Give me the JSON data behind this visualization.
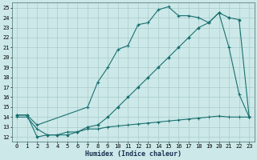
{
  "xlabel": "Humidex (Indice chaleur)",
  "bg_color": "#cce8e8",
  "grid_color": "#aacccc",
  "line_color": "#1a7070",
  "xlim": [
    -0.5,
    23.5
  ],
  "ylim": [
    11.5,
    25.5
  ],
  "yticks": [
    12,
    13,
    14,
    15,
    16,
    17,
    18,
    19,
    20,
    21,
    22,
    23,
    24,
    25
  ],
  "xticks": [
    0,
    1,
    2,
    3,
    4,
    5,
    6,
    7,
    8,
    9,
    10,
    11,
    12,
    13,
    14,
    15,
    16,
    17,
    18,
    19,
    20,
    21,
    22,
    23
  ],
  "line1_x": [
    0,
    1,
    2,
    7,
    8,
    9,
    10,
    11,
    12,
    13,
    14,
    15,
    16,
    17,
    18,
    19,
    20,
    21,
    22,
    23
  ],
  "line1_y": [
    14.2,
    14.2,
    13.2,
    15.0,
    17.5,
    19.0,
    20.8,
    21.2,
    23.3,
    23.5,
    24.8,
    25.1,
    24.2,
    24.2,
    24.0,
    23.5,
    24.5,
    21.0,
    16.3,
    14.0
  ],
  "line2_x": [
    0,
    1,
    2,
    3,
    4,
    5,
    6,
    7,
    8,
    9,
    10,
    11,
    12,
    13,
    14,
    15,
    16,
    17,
    18,
    19,
    20,
    21,
    22,
    23
  ],
  "line2_y": [
    14.2,
    14.2,
    12.0,
    12.2,
    12.2,
    12.2,
    12.5,
    13.0,
    13.2,
    14.0,
    15.0,
    16.0,
    17.0,
    18.0,
    19.0,
    20.0,
    21.0,
    22.0,
    23.0,
    23.5,
    24.5,
    24.0,
    23.8,
    14.0
  ],
  "line3_x": [
    0,
    1,
    2,
    3,
    4,
    5,
    6,
    7,
    8,
    9,
    10,
    11,
    12,
    13,
    14,
    15,
    16,
    17,
    18,
    19,
    20,
    21,
    22,
    23
  ],
  "line3_y": [
    14.0,
    14.0,
    12.8,
    12.2,
    12.2,
    12.5,
    12.5,
    12.8,
    12.8,
    13.0,
    13.1,
    13.2,
    13.3,
    13.4,
    13.5,
    13.6,
    13.7,
    13.8,
    13.9,
    14.0,
    14.1,
    14.0,
    14.0,
    14.0
  ],
  "tick_fontsize": 5,
  "xlabel_fontsize": 6,
  "linewidth": 0.8,
  "marker1": "+",
  "marker1_size": 3,
  "marker2": "D",
  "marker2_size": 1.8,
  "marker3": "+",
  "marker3_size": 2.5
}
